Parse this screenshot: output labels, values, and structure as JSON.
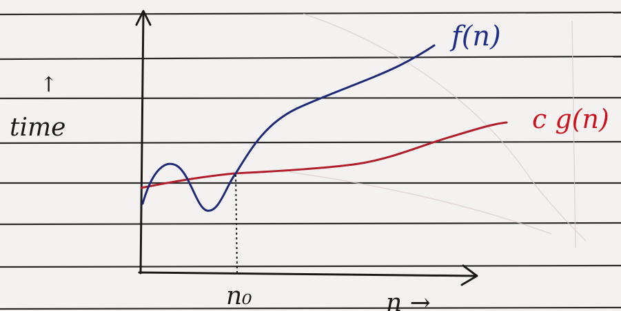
{
  "labels": {
    "f": "f(n)",
    "cg": "c g(n)",
    "time": "time",
    "time_arrow": "↑",
    "n0": "n₀",
    "n_axis": "n →"
  },
  "colors": {
    "paper": "#f3f2f0",
    "rule_line": "#2a2a2a",
    "axis": "#1a1a1a",
    "f_curve": "#1e2a78",
    "cg_curve": "#b11d2a",
    "label_cg": "#c8141e",
    "label_f": "#1f2f86"
  },
  "chart_data": {
    "type": "line",
    "note_type": "hand-drawn asymptotic bound sketch",
    "series": [
      {
        "name": "f(n)",
        "color": "#1e2a78"
      },
      {
        "name": "c g(n)",
        "color": "#b11d2a"
      }
    ],
    "marker": {
      "name": "n₀",
      "style": "dotted vertical"
    }
  }
}
